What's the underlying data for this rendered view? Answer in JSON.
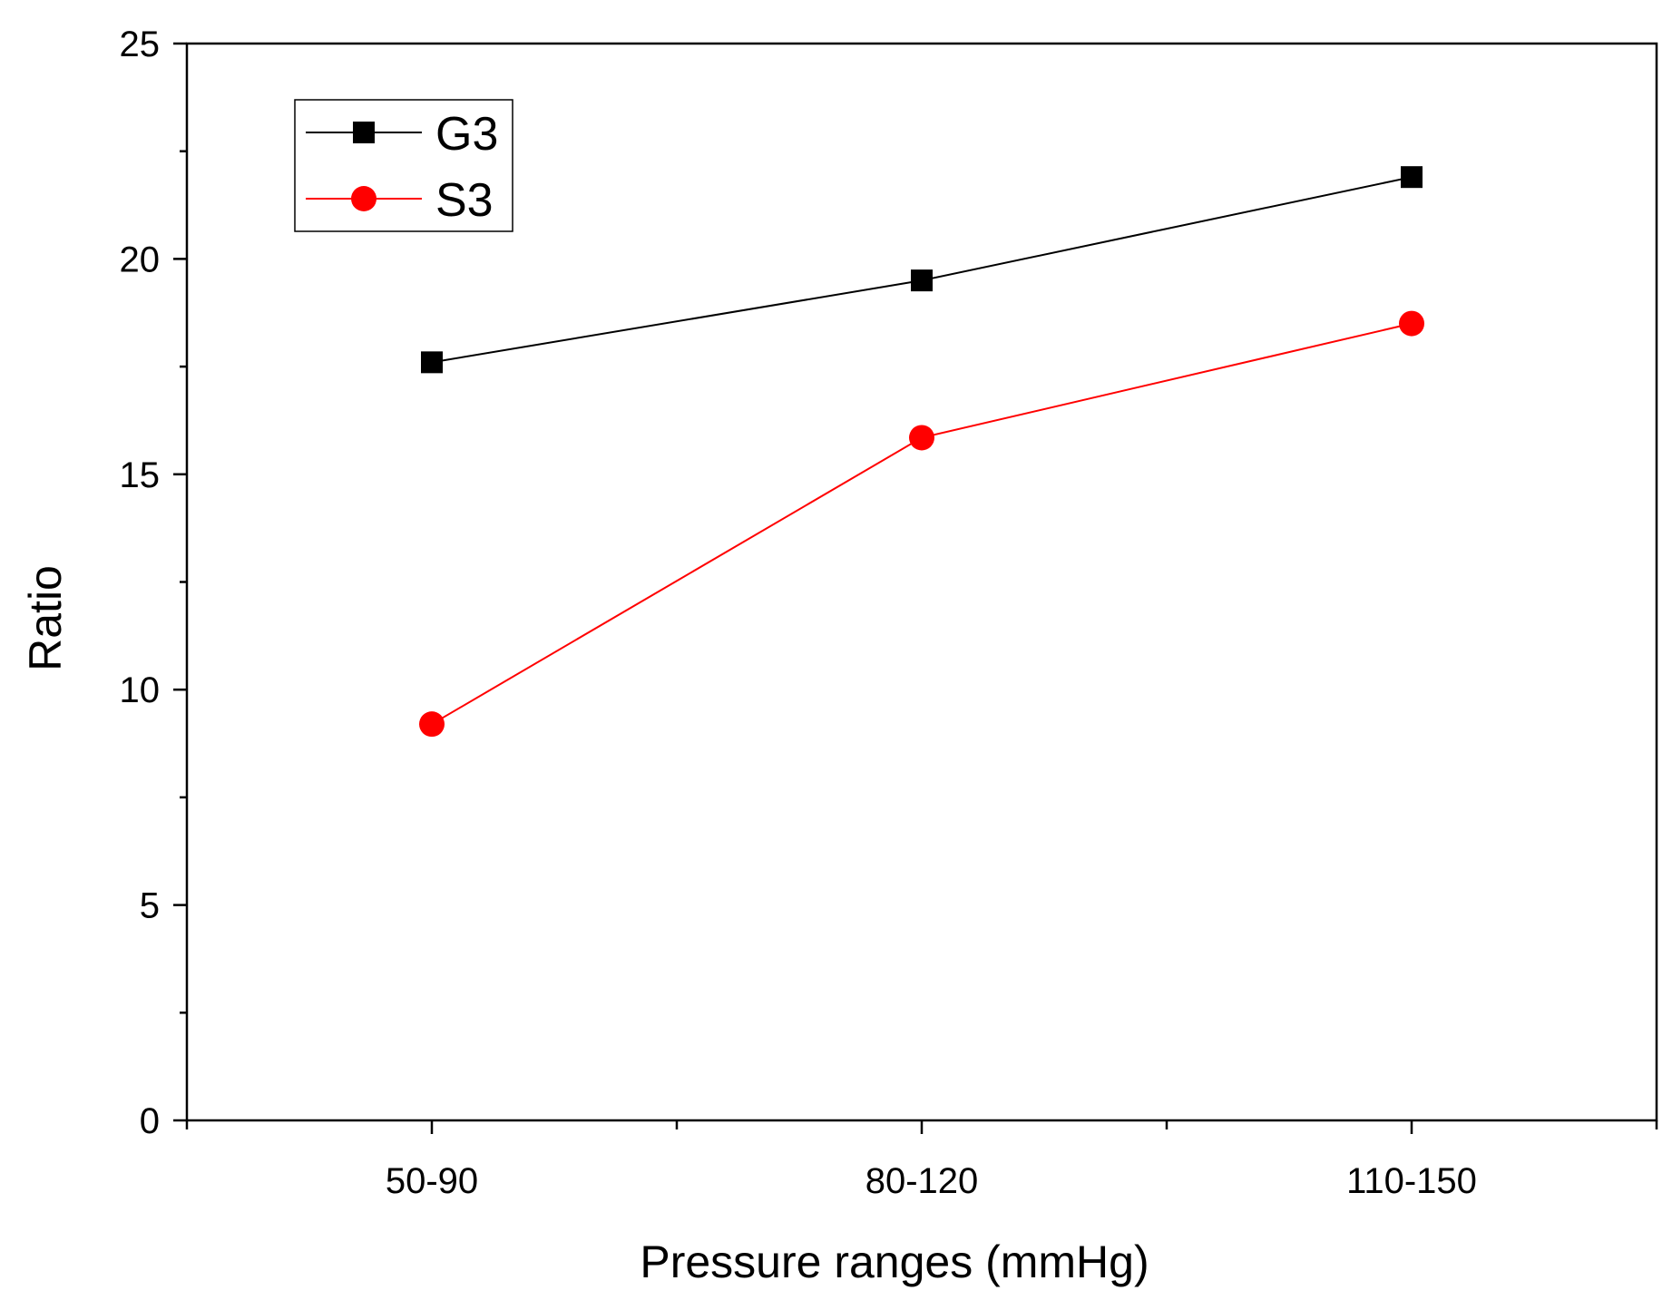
{
  "chart_data": {
    "type": "line",
    "title": "",
    "xlabel": "Pressure ranges (mmHg)",
    "ylabel": "Ratio",
    "categories": [
      "50-90",
      "80-120",
      "110-150"
    ],
    "ylim": [
      0,
      25
    ],
    "yticks": [
      0,
      5,
      10,
      15,
      20,
      25
    ],
    "y_minor_step": 2.5,
    "grid": false,
    "legend_position": "top-left",
    "series": [
      {
        "name": "G3",
        "values": [
          17.6,
          19.5,
          21.9
        ],
        "color": "#000000",
        "marker": "square"
      },
      {
        "name": "S3",
        "values": [
          9.2,
          15.85,
          18.5
        ],
        "color": "#ff0000",
        "marker": "circle"
      }
    ]
  }
}
